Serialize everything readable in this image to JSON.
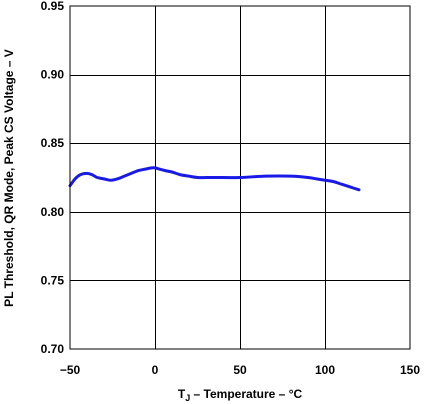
{
  "chart_data": {
    "type": "line",
    "xlabel": {
      "prefix": "T",
      "subscript": "J",
      "suffix": " – Temperature – °C"
    },
    "ylabel": "PL Threshold, QR Mode, Peak CS Voltage – V",
    "xlim": [
      -50,
      150
    ],
    "ylim": [
      0.7,
      0.95
    ],
    "xticks": [
      -50,
      0,
      50,
      100,
      150
    ],
    "xtick_labels": [
      "−50",
      "0",
      "50",
      "100",
      "150"
    ],
    "yticks": [
      0.7,
      0.75,
      0.8,
      0.85,
      0.9,
      0.95
    ],
    "ytick_labels": [
      "0.70",
      "0.75",
      "0.80",
      "0.85",
      "0.90",
      "0.95"
    ],
    "grid": true,
    "line_color": "#1a1ae6",
    "grid_color": "#000000",
    "series": [
      {
        "x": [
          -50,
          -47,
          -44,
          -40,
          -37,
          -34,
          -30,
          -26,
          -22,
          -18,
          -14,
          -10,
          -6,
          -2,
          0,
          3,
          6,
          10,
          15,
          20,
          25,
          35,
          50,
          65,
          80,
          90,
          95,
          100,
          105,
          110,
          115,
          120
        ],
        "y": [
          0.819,
          0.824,
          0.827,
          0.828,
          0.827,
          0.825,
          0.824,
          0.823,
          0.824,
          0.826,
          0.828,
          0.83,
          0.831,
          0.832,
          0.832,
          0.831,
          0.83,
          0.829,
          0.827,
          0.826,
          0.825,
          0.825,
          0.825,
          0.826,
          0.826,
          0.825,
          0.824,
          0.823,
          0.822,
          0.82,
          0.818,
          0.816
        ]
      }
    ]
  }
}
